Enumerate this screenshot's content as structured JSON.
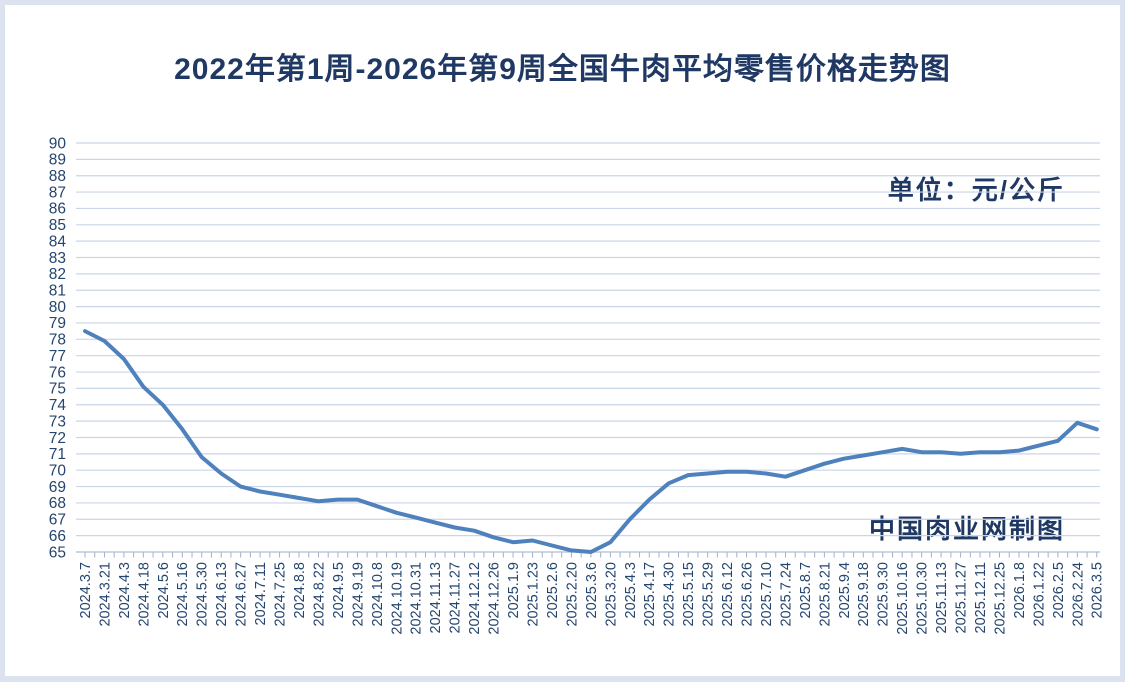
{
  "texts": {
    "title": "2022年第1周-2026年第9周全国牛肉平均零售价格走势图",
    "unit_label": "单位：元/公斤",
    "watermark": "中国肉业网制图"
  },
  "colors": {
    "title_text": "#1F3864",
    "axis_text": "#24456E",
    "gridline": "#c9d5e8",
    "axis_line": "#b6c2d6",
    "tick": "#9fb0c9",
    "line": "#4f81bd",
    "card_bg": "#ffffff",
    "frame_bg": "#dde3ee"
  },
  "chart_data": {
    "type": "line",
    "title": "2022年第1周-2026年第9周全国牛肉平均零售价格走势图",
    "xlabel": "",
    "ylabel": "",
    "unit": "元/公斤",
    "ylim": [
      65,
      90
    ],
    "ytick_step": 1,
    "grid": true,
    "legend": false,
    "minor_ticks_between_labels": 1,
    "categories": [
      "2024.3.7",
      "2024.3.21",
      "2024.4.3",
      "2024.4.18",
      "2024.5.6",
      "2024.5.16",
      "2024.5.30",
      "2024.6.13",
      "2024.6.27",
      "2024.7.11",
      "2024.7.25",
      "2024.8.8",
      "2024.8.22",
      "2024.9.5",
      "2024.9.19",
      "2024.10.8",
      "2024.10.19",
      "2024.10.31",
      "2024.11.13",
      "2024.11.27",
      "2024.12.12",
      "2024.12.26",
      "2025.1.9",
      "2025.1.23",
      "2025.2.6",
      "2025.2.20",
      "2025.3.6",
      "2025.3.20",
      "2025.4.3",
      "2025.4.17",
      "2025.4.30",
      "2025.5.15",
      "2025.5.29",
      "2025.6.12",
      "2025.6.26",
      "2025.7.10",
      "2025.7.24",
      "2025.8.7",
      "2025.8.21",
      "2025.9.4",
      "2025.9.18",
      "2025.9.30",
      "2025.10.16",
      "2025.10.30",
      "2025.11.13",
      "2025.11.27",
      "2025.12.11",
      "2025.12.25",
      "2026.1.8",
      "2026.1.22",
      "2026.2.5",
      "2026.2.24",
      "2026.3.5"
    ],
    "values": [
      78.5,
      77.9,
      76.8,
      75.1,
      74.0,
      72.5,
      70.8,
      69.8,
      69.0,
      68.7,
      68.5,
      68.3,
      68.1,
      68.2,
      68.2,
      67.8,
      67.4,
      67.1,
      66.8,
      66.5,
      66.3,
      65.9,
      65.6,
      65.7,
      65.4,
      65.1,
      65.0,
      65.6,
      67.0,
      68.2,
      69.2,
      69.7,
      69.8,
      69.9,
      69.9,
      69.8,
      69.6,
      70.0,
      70.4,
      70.7,
      70.9,
      71.1,
      71.3,
      71.1,
      71.1,
      71.0,
      71.1,
      71.1,
      71.2,
      71.5,
      71.8,
      72.9,
      72.5
    ]
  }
}
